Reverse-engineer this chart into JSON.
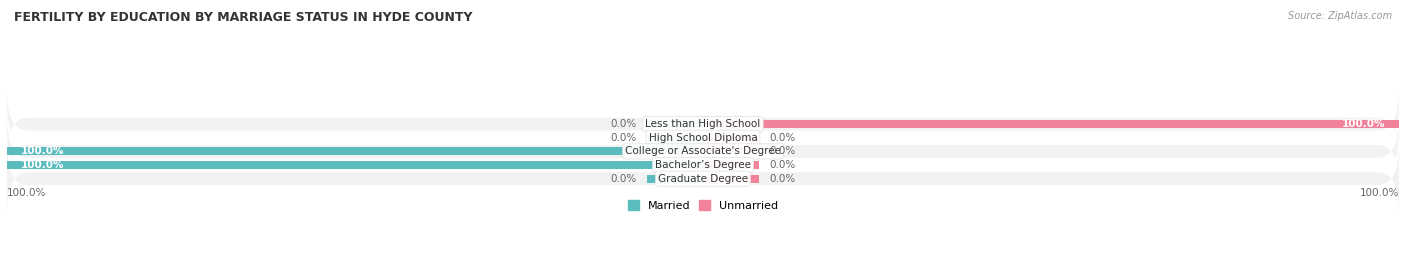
{
  "title": "FERTILITY BY EDUCATION BY MARRIAGE STATUS IN HYDE COUNTY",
  "source": "Source: ZipAtlas.com",
  "categories": [
    "Less than High School",
    "High School Diploma",
    "College or Associate's Degree",
    "Bachelor’s Degree",
    "Graduate Degree"
  ],
  "married": [
    0.0,
    0.0,
    100.0,
    100.0,
    0.0
  ],
  "unmarried": [
    100.0,
    0.0,
    0.0,
    0.0,
    0.0
  ],
  "married_color": "#5bbcbf",
  "unmarried_color": "#f2829a",
  "row_bg_even": "#f2f2f2",
  "row_bg_odd": "#ffffff",
  "label_dark": "#444444",
  "label_white": "#ffffff",
  "title_color": "#333333",
  "source_color": "#999999",
  "axis_label_color": "#666666",
  "axis_limit": 100,
  "stub_size": 8,
  "figsize": [
    14.06,
    2.69
  ],
  "dpi": 100
}
